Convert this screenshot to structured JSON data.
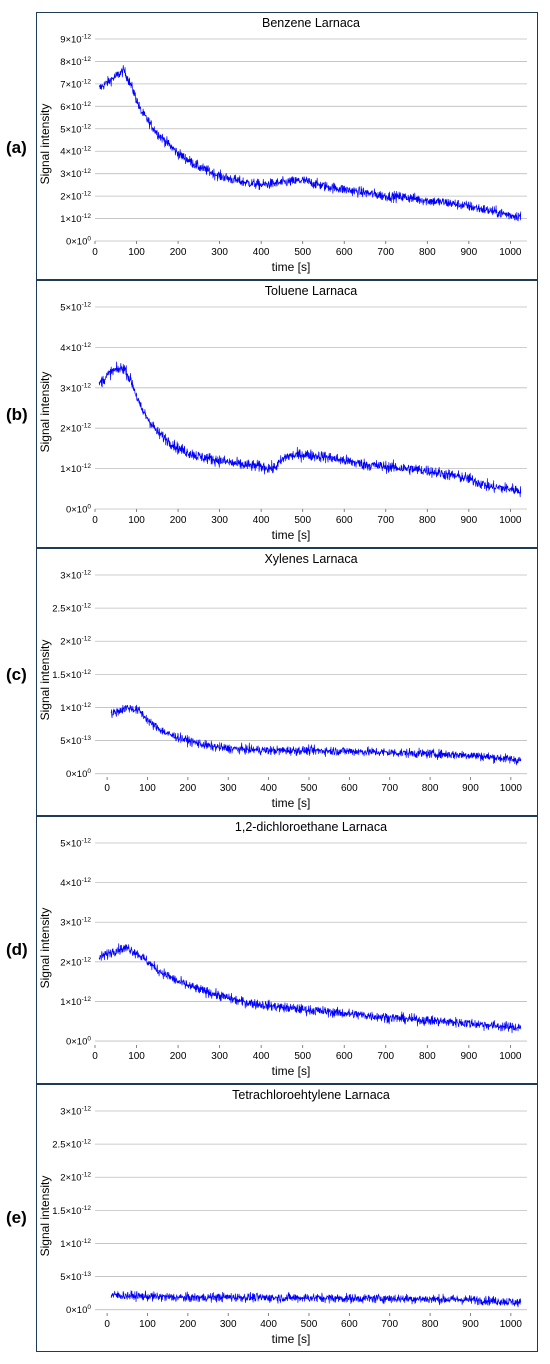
{
  "panels": [
    {
      "label": "(a)"
    },
    {
      "label": "(b)"
    },
    {
      "label": "(c)"
    },
    {
      "label": "(d)"
    },
    {
      "label": "(e)"
    }
  ],
  "chart_data": [
    {
      "type": "line",
      "title": "Benzene Larnaca",
      "xlabel": "time [s]",
      "ylabel": "Signal intensity",
      "xlim": [
        0,
        1040
      ],
      "ylim": [
        0,
        9e-12
      ],
      "xticks": [
        0,
        100,
        200,
        300,
        400,
        500,
        600,
        700,
        800,
        900,
        1000
      ],
      "yticks": [
        0,
        1e-12,
        2e-12,
        3e-12,
        4e-12,
        5e-12,
        6e-12,
        7e-12,
        8e-12,
        9e-12
      ],
      "ytick_labels": [
        [
          "0",
          "0"
        ],
        [
          "1",
          "-12"
        ],
        [
          "2",
          "-12"
        ],
        [
          "3",
          "-12"
        ],
        [
          "4",
          "-12"
        ],
        [
          "5",
          "-12"
        ],
        [
          "6",
          "-12"
        ],
        [
          "7",
          "-12"
        ],
        [
          "8",
          "-12"
        ],
        [
          "9",
          "-12"
        ]
      ],
      "grid": true,
      "series": [
        {
          "color": "#0000ff",
          "x_range": [
            10,
            1025
          ],
          "profile_x": [
            10,
            40,
            70,
            90,
            110,
            150,
            200,
            250,
            300,
            350,
            400,
            450,
            500,
            550,
            600,
            650,
            700,
            750,
            800,
            850,
            900,
            950,
            1000,
            1025
          ],
          "profile_y": [
            6.8e-12,
            7.2e-12,
            7.6e-12,
            6.8e-12,
            5.8e-12,
            4.8e-12,
            3.9e-12,
            3.3e-12,
            2.9e-12,
            2.65e-12,
            2.5e-12,
            2.6e-12,
            2.7e-12,
            2.45e-12,
            2.3e-12,
            2.15e-12,
            2e-12,
            1.95e-12,
            1.8e-12,
            1.7e-12,
            1.55e-12,
            1.35e-12,
            1.15e-12,
            1.1e-12
          ],
          "noise": 4e-13
        }
      ]
    },
    {
      "type": "line",
      "title": "Toluene Larnaca",
      "xlabel": "time [s]",
      "ylabel": "Signal intensity",
      "xlim": [
        0,
        1040
      ],
      "ylim": [
        0,
        5e-12
      ],
      "xticks": [
        0,
        100,
        200,
        300,
        400,
        500,
        600,
        700,
        800,
        900,
        1000
      ],
      "yticks": [
        0,
        1e-12,
        2e-12,
        3e-12,
        4e-12,
        5e-12
      ],
      "ytick_labels": [
        [
          "0",
          "0"
        ],
        [
          "1",
          "-12"
        ],
        [
          "2",
          "-12"
        ],
        [
          "3",
          "-12"
        ],
        [
          "4",
          "-12"
        ],
        [
          "5",
          "-12"
        ]
      ],
      "grid": true,
      "series": [
        {
          "color": "#0000ff",
          "x_range": [
            10,
            1025
          ],
          "profile_x": [
            10,
            40,
            70,
            90,
            110,
            150,
            200,
            250,
            300,
            350,
            400,
            430,
            460,
            500,
            550,
            600,
            650,
            700,
            750,
            800,
            850,
            900,
            950,
            1000,
            1025
          ],
          "profile_y": [
            3.1e-12,
            3.4e-12,
            3.5e-12,
            3.1e-12,
            2.5e-12,
            1.9e-12,
            1.5e-12,
            1.3e-12,
            1.2e-12,
            1.1e-12,
            1.05e-12,
            1e-12,
            1.3e-12,
            1.35e-12,
            1.3e-12,
            1.2e-12,
            1.1e-12,
            1.05e-12,
            1e-12,
            9.5e-13,
            8.5e-13,
            7.5e-13,
            5.5e-13,
            5e-13,
            4.5e-13
          ],
          "noise": 2.5e-13
        }
      ]
    },
    {
      "type": "line",
      "title": "Xylenes Larnaca",
      "xlabel": "time [s]",
      "ylabel": "Signal intensity",
      "xlim": [
        -30,
        1040
      ],
      "ylim": [
        -5e-14,
        3e-12
      ],
      "xticks": [
        0,
        100,
        200,
        300,
        400,
        500,
        600,
        700,
        800,
        900,
        1000
      ],
      "yticks": [
        0,
        5e-13,
        1e-12,
        1.5e-12,
        2e-12,
        2.5e-12,
        3e-12
      ],
      "ytick_labels": [
        [
          "0",
          "0"
        ],
        [
          "5",
          "-13"
        ],
        [
          "1",
          "-12"
        ],
        [
          "1.5",
          "-12"
        ],
        [
          "2",
          "-12"
        ],
        [
          "2.5",
          "-12"
        ],
        [
          "3",
          "-12"
        ]
      ],
      "grid": true,
      "series": [
        {
          "color": "#0000ff",
          "x_range": [
            10,
            1025
          ],
          "profile_x": [
            10,
            50,
            80,
            110,
            150,
            200,
            250,
            300,
            400,
            500,
            600,
            700,
            800,
            900,
            1000,
            1025
          ],
          "profile_y": [
            9e-13,
            1e-12,
            9.5e-13,
            7.5e-13,
            6e-13,
            5e-13,
            4.2e-13,
            3.8e-13,
            3.5e-13,
            3.5e-13,
            3.4e-13,
            3.2e-13,
            3e-13,
            2.8e-13,
            2.2e-13,
            2e-13
          ],
          "noise": 1.2e-13
        }
      ]
    },
    {
      "type": "line",
      "title": "1,2-dichloroethane Larnaca",
      "xlabel": "time [s]",
      "ylabel": "Signal intensity",
      "xlim": [
        0,
        1040
      ],
      "ylim": [
        -1e-13,
        5e-12
      ],
      "xticks": [
        0,
        100,
        200,
        300,
        400,
        500,
        600,
        700,
        800,
        900,
        1000
      ],
      "yticks": [
        0,
        1e-12,
        2e-12,
        3e-12,
        4e-12,
        5e-12
      ],
      "ytick_labels": [
        [
          "0",
          "0"
        ],
        [
          "1",
          "-12"
        ],
        [
          "2",
          "-12"
        ],
        [
          "3",
          "-12"
        ],
        [
          "4",
          "-12"
        ],
        [
          "5",
          "-12"
        ]
      ],
      "grid": true,
      "series": [
        {
          "color": "#0000ff",
          "x_range": [
            10,
            1025
          ],
          "profile_x": [
            10,
            50,
            80,
            110,
            150,
            200,
            250,
            300,
            350,
            400,
            450,
            500,
            600,
            700,
            800,
            900,
            1000,
            1025
          ],
          "profile_y": [
            2.1e-12,
            2.3e-12,
            2.35e-12,
            2.15e-12,
            1.8e-12,
            1.5e-12,
            1.3e-12,
            1.15e-12,
            1e-12,
            9.2e-13,
            8.5e-13,
            8e-13,
            7e-13,
            6e-13,
            5.2e-13,
            4.5e-13,
            3.5e-13,
            3.5e-13
          ],
          "noise": 2.2e-13
        }
      ]
    },
    {
      "type": "line",
      "title": "Tetrachloroehtylene Larnaca",
      "xlabel": "time [s]",
      "ylabel": "Signal intensity",
      "xlim": [
        -30,
        1040
      ],
      "ylim": [
        -5e-14,
        3e-12
      ],
      "xticks": [
        0,
        100,
        200,
        300,
        400,
        500,
        600,
        700,
        800,
        900,
        1000
      ],
      "yticks": [
        0,
        5e-13,
        1e-12,
        1.5e-12,
        2e-12,
        2.5e-12,
        3e-12
      ],
      "ytick_labels": [
        [
          "0",
          "0"
        ],
        [
          "5",
          "-13"
        ],
        [
          "1",
          "-12"
        ],
        [
          "1.5",
          "-12"
        ],
        [
          "2",
          "-12"
        ],
        [
          "2.5",
          "-12"
        ],
        [
          "3",
          "-12"
        ]
      ],
      "grid": true,
      "series": [
        {
          "color": "#0000ff",
          "x_range": [
            10,
            1025
          ],
          "profile_x": [
            10,
            100,
            200,
            300,
            400,
            500,
            600,
            700,
            800,
            900,
            1000,
            1025
          ],
          "profile_y": [
            2.2e-13,
            2e-13,
            1.8e-13,
            1.9e-13,
            1.8e-13,
            1.8e-13,
            1.7e-13,
            1.7e-13,
            1.6e-13,
            1.5e-13,
            1.2e-13,
            1e-13
          ],
          "noise": 1.2e-13
        }
      ]
    }
  ]
}
